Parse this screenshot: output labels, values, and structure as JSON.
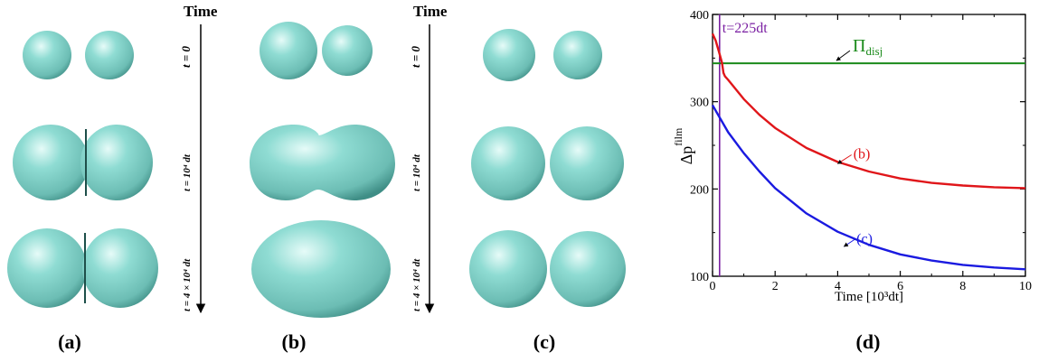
{
  "figure": {
    "panels": [
      {
        "label": "(a)",
        "time_title": "Time",
        "time_labels": [
          "t = 0",
          "t = 10⁴ dt",
          "t = 4 × 10⁴ dt"
        ]
      },
      {
        "label": "(b)"
      },
      {
        "label": "(c)",
        "time_title": "Time",
        "time_labels": [
          "t = 0",
          "t = 10⁴ dt",
          "t = 4 × 10⁴ dt"
        ]
      },
      {
        "label": "(d)"
      }
    ],
    "colors": {
      "droplet": "#7fcfc6",
      "droplet_highlight": "#e6fbf8",
      "droplet_shadow": "#3f8e86"
    }
  },
  "chart_data": {
    "type": "line",
    "xlabel": "Time [10³dt]",
    "ylabel": "Δp^film",
    "ylabel_main": "Δp",
    "ylabel_sup": "film",
    "xlim": [
      0,
      10
    ],
    "ylim": [
      100,
      400
    ],
    "xticks": [
      0,
      2,
      4,
      6,
      8,
      10
    ],
    "yticks": [
      100,
      200,
      300,
      400
    ],
    "grid": false,
    "vline": {
      "x": 0.225,
      "label": "t=225dt",
      "color": "#7a1fa2"
    },
    "hline": {
      "y": 344,
      "label_main": "Π",
      "label_sub": "disj",
      "color": "#1a8a1a"
    },
    "series": [
      {
        "name": "(b)",
        "color": "#e0161a",
        "x": [
          0,
          0.1,
          0.2,
          0.3,
          0.35,
          0.4,
          0.5,
          1,
          1.5,
          2,
          3,
          4,
          5,
          6,
          7,
          8,
          9,
          10
        ],
        "y": [
          378,
          370,
          358,
          345,
          333,
          329,
          325,
          303,
          285,
          270,
          247,
          231,
          220,
          212,
          207,
          204,
          202,
          201
        ]
      },
      {
        "name": "(c)",
        "color": "#1a1ae0",
        "x": [
          0,
          0.5,
          1,
          1.5,
          2,
          3,
          4,
          5,
          6,
          7,
          8,
          9,
          10
        ],
        "y": [
          296,
          265,
          241,
          220,
          201,
          172,
          151,
          136,
          125,
          118,
          113,
          110,
          108
        ]
      }
    ],
    "annotations": [
      {
        "text": "(b)",
        "x": 4.5,
        "y": 235,
        "arrow_to": [
          4.0,
          229
        ]
      },
      {
        "text": "(c)",
        "x": 4.6,
        "y": 138,
        "arrow_to": [
          4.2,
          134
        ]
      }
    ]
  }
}
